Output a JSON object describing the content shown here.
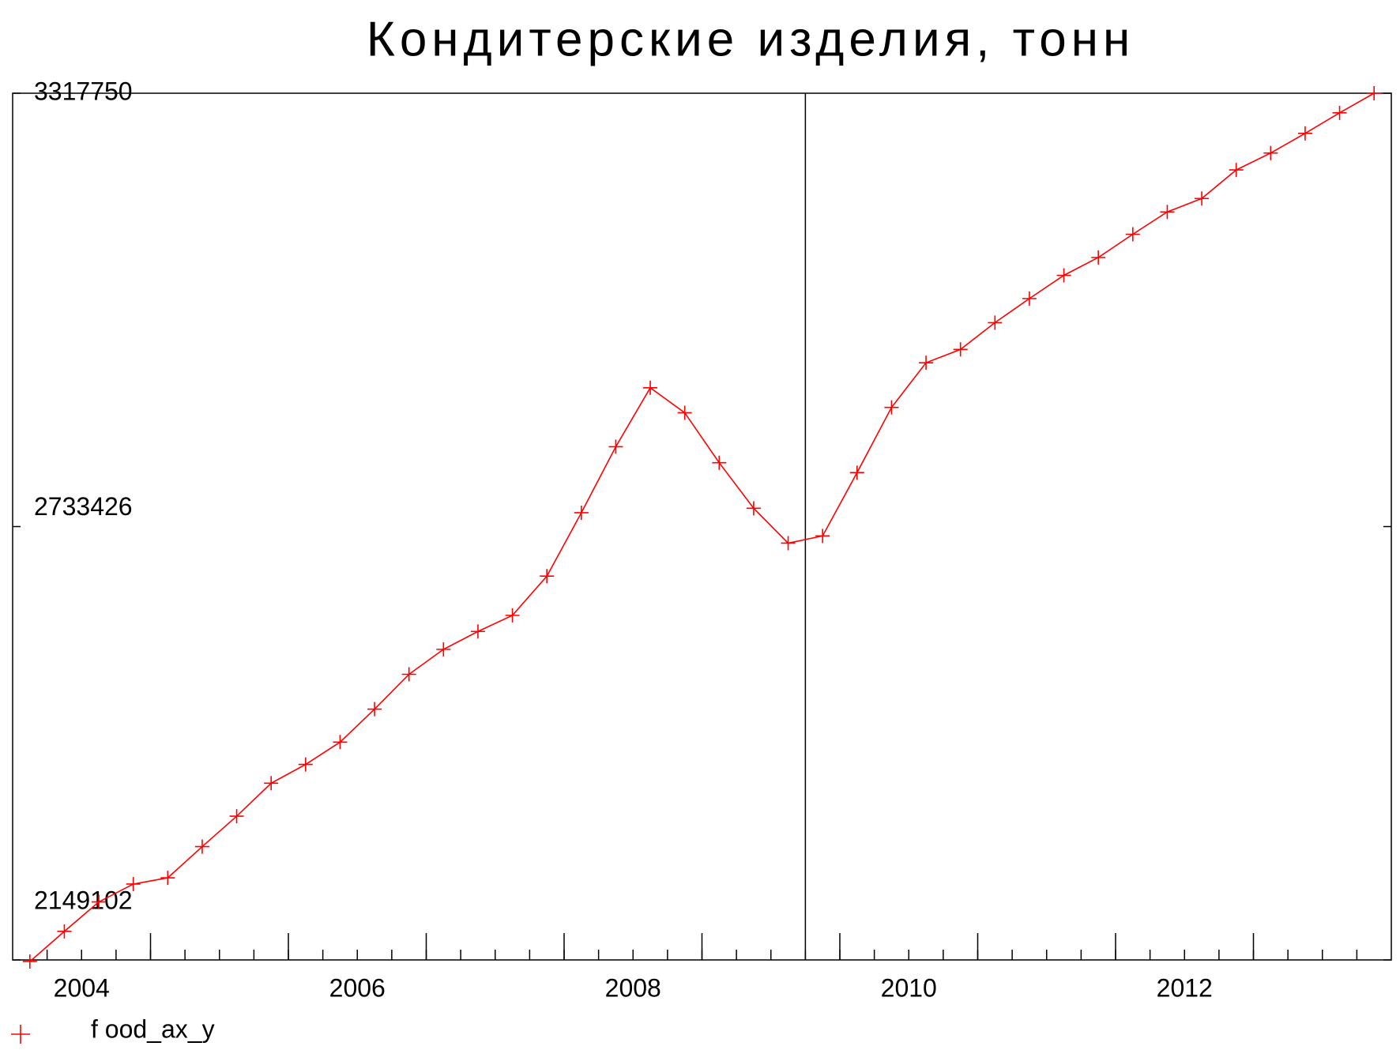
{
  "chart_data": {
    "type": "line",
    "title": "Кондитерские изделия, тонн",
    "x": [
      2004.125,
      2004.375,
      2004.625,
      2004.875,
      2005.125,
      2005.375,
      2005.625,
      2005.875,
      2006.125,
      2006.375,
      2006.625,
      2006.875,
      2007.125,
      2007.375,
      2007.625,
      2007.875,
      2008.125,
      2008.375,
      2008.625,
      2008.875,
      2009.125,
      2009.375,
      2009.625,
      2009.875,
      2010.125,
      2010.375,
      2010.625,
      2010.875,
      2011.125,
      2011.375,
      2011.625,
      2011.875,
      2012.125,
      2012.375,
      2012.625,
      2012.875,
      2013.125,
      2013.375,
      2013.625,
      2013.875
    ],
    "series": [
      {
        "name": "f ood_ax_y",
        "color": "#ff0000",
        "values": [
          2147000,
          2187600,
          2227300,
          2251400,
          2259800,
          2301900,
          2342900,
          2387400,
          2412700,
          2442800,
          2487300,
          2534200,
          2567900,
          2592000,
          2613700,
          2666600,
          2752100,
          2841100,
          2920600,
          2886900,
          2819500,
          2758100,
          2711100,
          2720800,
          2806200,
          2894100,
          2954300,
          2972300,
          3008400,
          3040900,
          3072200,
          3096300,
          3127600,
          3157700,
          3175800,
          3214300,
          3237100,
          3263600,
          3291300,
          3317750
        ]
      }
    ],
    "xlim": [
      2004,
      2014
    ],
    "xticks": [
      {
        "value": 2004.5,
        "label": "2004"
      },
      {
        "value": 2006.5,
        "label": "2006"
      },
      {
        "value": 2008.5,
        "label": "2008"
      },
      {
        "value": 2010.5,
        "label": "2010"
      },
      {
        "value": 2012.5,
        "label": "2012"
      }
    ],
    "major_xticks": [
      2005,
      2006,
      2007,
      2008,
      2009,
      2010,
      2011,
      2012,
      2013
    ],
    "minor_xtick_step": 0.25,
    "vline_x": 2009.75,
    "ylim": [
      2149102,
      3317750
    ],
    "yticks": [
      2149102,
      2733426,
      3317750
    ]
  }
}
